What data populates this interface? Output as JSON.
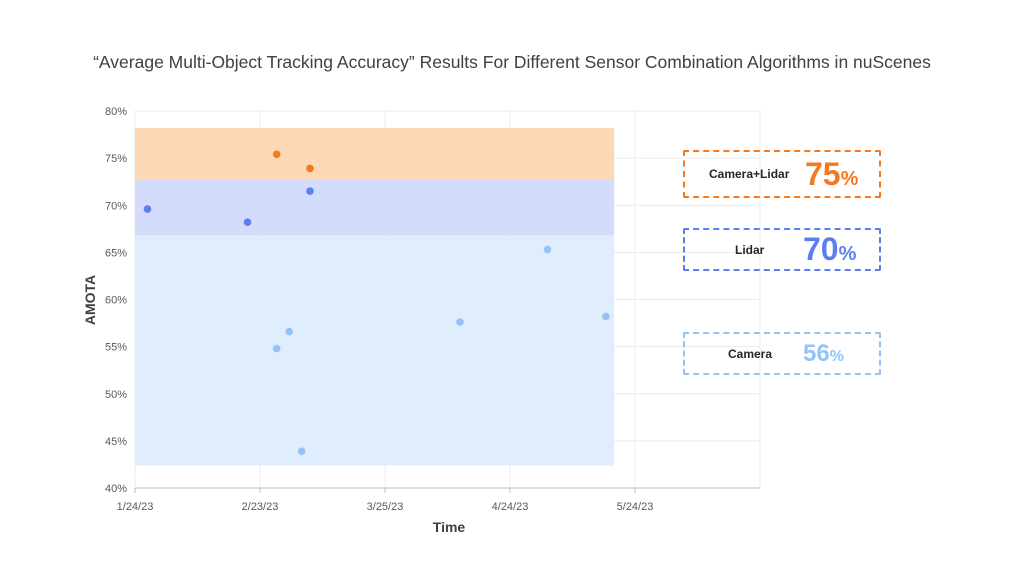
{
  "title": "“Average Multi-Object Tracking Accuracy” Results For Different Sensor Combination Algorithms in nuScenes",
  "colors": {
    "camera_lidar": "#f4791f",
    "lidar": "#5b7ff0",
    "camera": "#93c3f7",
    "band_camera_lidar": "#fdd8b5",
    "band_lidar": "#d3dcfb",
    "band_camera": "#e0edfc"
  },
  "callouts": [
    {
      "label": "Camera+Lidar",
      "value": "75",
      "unit": "%"
    },
    {
      "label": "Lidar",
      "value": "70",
      "unit": "%"
    },
    {
      "label": "Camera",
      "value": "56",
      "unit": "%"
    }
  ],
  "chart_data": {
    "type": "scatter",
    "xlabel": "Time",
    "ylabel": "AMOTA",
    "x_ticks": [
      "1/24/23",
      "2/23/23",
      "3/25/23",
      "4/24/23",
      "5/24/23"
    ],
    "y_ticks": [
      "40%",
      "45%",
      "50%",
      "55%",
      "60%",
      "65%",
      "70%",
      "75%",
      "80%"
    ],
    "xlim": [
      "2023-01-24",
      "2023-06-23"
    ],
    "ylim": [
      40,
      80
    ],
    "grid": true,
    "bands": [
      {
        "series": "Camera",
        "x_range": [
          "2023-01-24",
          "2023-05-19"
        ],
        "y_range": [
          42.4,
          66.8
        ]
      },
      {
        "series": "Lidar",
        "x_range": [
          "2023-01-24",
          "2023-05-19"
        ],
        "y_range": [
          66.8,
          72.7
        ]
      },
      {
        "series": "Camera+Lidar",
        "x_range": [
          "2023-01-24",
          "2023-05-19"
        ],
        "y_range": [
          72.7,
          78.2
        ]
      }
    ],
    "series": [
      {
        "name": "Camera+Lidar",
        "color": "#f4791f",
        "points": [
          {
            "x": "2023-02-27",
            "y": 75.4
          },
          {
            "x": "2023-03-07",
            "y": 73.9
          }
        ]
      },
      {
        "name": "Lidar",
        "color": "#5b7ff0",
        "points": [
          {
            "x": "2023-01-27",
            "y": 69.6
          },
          {
            "x": "2023-02-20",
            "y": 68.2
          },
          {
            "x": "2023-03-07",
            "y": 71.5
          }
        ]
      },
      {
        "name": "Camera",
        "color": "#93c3f7",
        "points": [
          {
            "x": "2023-02-27",
            "y": 54.8
          },
          {
            "x": "2023-03-02",
            "y": 56.6
          },
          {
            "x": "2023-03-05",
            "y": 43.9
          },
          {
            "x": "2023-04-12",
            "y": 57.6
          },
          {
            "x": "2023-05-03",
            "y": 65.3
          },
          {
            "x": "2023-05-17",
            "y": 58.2
          }
        ]
      }
    ]
  }
}
